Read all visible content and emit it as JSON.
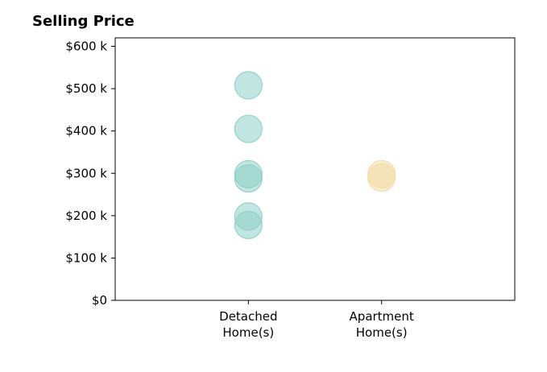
{
  "chart_data": {
    "type": "scatter",
    "title": "Selling Price",
    "xlabel": "",
    "ylabel": "",
    "categories": [
      "Detached\nHome(s)",
      "Apartment\nHome(s)"
    ],
    "ylim": [
      0,
      620000
    ],
    "yticks": [
      0,
      100000,
      200000,
      300000,
      400000,
      500000,
      600000
    ],
    "ytick_labels": [
      "$0",
      "$100 k",
      "$200 k",
      "$300 k",
      "$400 k",
      "$500 k",
      "$600 k"
    ],
    "grid": false,
    "series": [
      {
        "category": "Detached\nHome(s)",
        "values": [
          508000,
          405000,
          298000,
          288000,
          198000,
          178000
        ],
        "color": "#8ecfc6"
      },
      {
        "category": "Apartment\nHome(s)",
        "values": [
          298000,
          290000
        ],
        "color": "#f3dca6"
      }
    ]
  }
}
